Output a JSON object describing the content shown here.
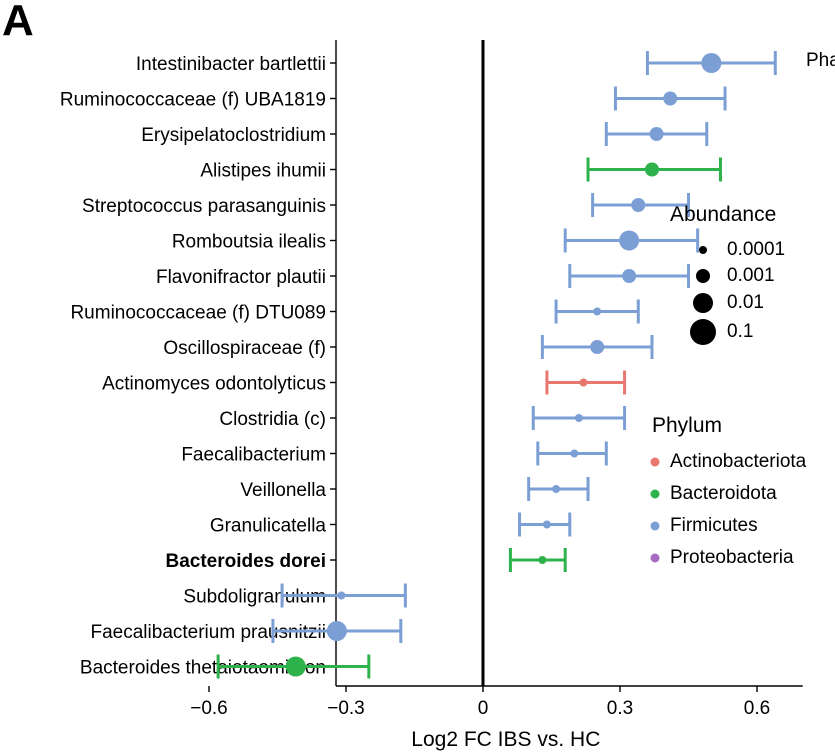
{
  "panel_label": "A",
  "cut_text": "Pha",
  "chart_data": {
    "type": "scatter",
    "xlabel": "Log2 FC IBS vs. HC",
    "xlim": [
      -0.63,
      0.7
    ],
    "xticks": [
      -0.6,
      -0.3,
      0,
      0.3,
      0.6
    ],
    "xtick_labels": [
      "−0.6",
      "−0.3",
      "0",
      "0.3",
      "0.6"
    ],
    "vline_at": 0,
    "grid": false,
    "bold_taxa": [
      "Bacteroides dorei"
    ],
    "taxa": [
      {
        "name": "Intestinibacter bartlettii",
        "fc": 0.5,
        "lo": 0.36,
        "hi": 0.64,
        "phylum": "Firmicutes",
        "abundance": 0.01
      },
      {
        "name": "Ruminococcaceae (f) UBA1819",
        "fc": 0.41,
        "lo": 0.29,
        "hi": 0.53,
        "phylum": "Firmicutes",
        "abundance": 0.001
      },
      {
        "name": "Erysipelatoclostridium",
        "fc": 0.38,
        "lo": 0.27,
        "hi": 0.49,
        "phylum": "Firmicutes",
        "abundance": 0.001
      },
      {
        "name": "Alistipes ihumii",
        "fc": 0.37,
        "lo": 0.23,
        "hi": 0.52,
        "phylum": "Bacteroidota",
        "abundance": 0.001
      },
      {
        "name": "Streptococcus parasanguinis",
        "fc": 0.34,
        "lo": 0.24,
        "hi": 0.45,
        "phylum": "Firmicutes",
        "abundance": 0.001
      },
      {
        "name": "Romboutsia ilealis",
        "fc": 0.32,
        "lo": 0.18,
        "hi": 0.47,
        "phylum": "Firmicutes",
        "abundance": 0.01
      },
      {
        "name": "Flavonifractor plautii",
        "fc": 0.32,
        "lo": 0.19,
        "hi": 0.45,
        "phylum": "Firmicutes",
        "abundance": 0.001
      },
      {
        "name": "Ruminococcaceae (f) DTU089",
        "fc": 0.25,
        "lo": 0.16,
        "hi": 0.34,
        "phylum": "Firmicutes",
        "abundance": 0.0001
      },
      {
        "name": "Oscillospiraceae (f)",
        "fc": 0.25,
        "lo": 0.13,
        "hi": 0.37,
        "phylum": "Firmicutes",
        "abundance": 0.001
      },
      {
        "name": "Actinomyces odontolyticus",
        "fc": 0.22,
        "lo": 0.14,
        "hi": 0.31,
        "phylum": "Actinobacteriota",
        "abundance": 0.0001
      },
      {
        "name": "Clostridia (c)",
        "fc": 0.21,
        "lo": 0.11,
        "hi": 0.31,
        "phylum": "Firmicutes",
        "abundance": 0.0001
      },
      {
        "name": "Faecalibacterium",
        "fc": 0.2,
        "lo": 0.12,
        "hi": 0.27,
        "phylum": "Firmicutes",
        "abundance": 0.0001
      },
      {
        "name": "Veillonella",
        "fc": 0.16,
        "lo": 0.1,
        "hi": 0.23,
        "phylum": "Firmicutes",
        "abundance": 0.0001
      },
      {
        "name": "Granulicatella",
        "fc": 0.14,
        "lo": 0.08,
        "hi": 0.19,
        "phylum": "Firmicutes",
        "abundance": 0.0001
      },
      {
        "name": "Bacteroides dorei",
        "fc": 0.13,
        "lo": 0.06,
        "hi": 0.18,
        "phylum": "Bacteroidota",
        "abundance": 0.0001
      },
      {
        "name": "Subdoligranulum",
        "fc": -0.31,
        "lo": -0.44,
        "hi": -0.17,
        "phylum": "Firmicutes",
        "abundance": 0.0001
      },
      {
        "name": "Faecalibacterium prausnitzii",
        "fc": -0.32,
        "lo": -0.46,
        "hi": -0.18,
        "phylum": "Firmicutes",
        "abundance": 0.01
      },
      {
        "name": "Bacteroides thetaiotaomicron",
        "fc": -0.41,
        "lo": -0.58,
        "hi": -0.25,
        "phylum": "Bacteroidota",
        "abundance": 0.01
      }
    ],
    "legend_abundance": {
      "title": "Abundance",
      "items": [
        {
          "label": "0.0001",
          "value": 0.0001
        },
        {
          "label": "0.001",
          "value": 0.001
        },
        {
          "label": "0.01",
          "value": 0.01
        },
        {
          "label": "0.1",
          "value": 0.1
        }
      ]
    },
    "legend_phylum": {
      "title": "Phylum",
      "items": [
        {
          "label": "Actinobacteriota",
          "color": "#E8776F"
        },
        {
          "label": "Bacteroidota",
          "color": "#2EB24B"
        },
        {
          "label": "Firmicutes",
          "color": "#7B9FD5"
        },
        {
          "label": "Proteobacteria",
          "color": "#A56CC1"
        }
      ]
    }
  }
}
